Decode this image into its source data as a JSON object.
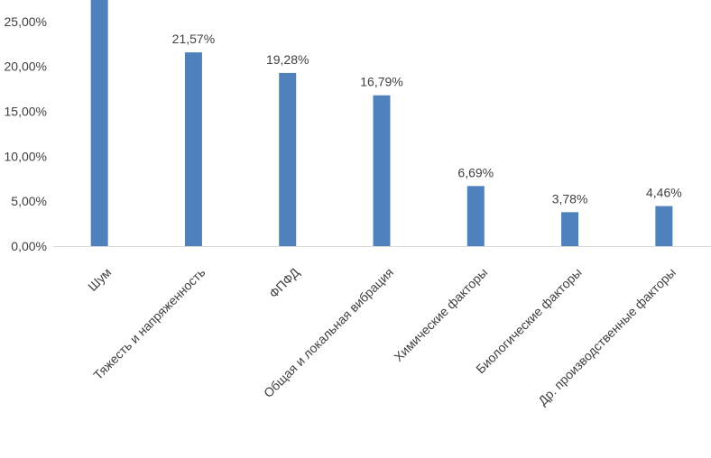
{
  "chart_data": {
    "type": "bar",
    "title": "",
    "xlabel": "",
    "ylabel": "",
    "categories": [
      "Шум",
      "Тяжесть и напряженность",
      "ФПФД",
      "Общая и локальная вибрация",
      "Химические факторы",
      "Биологические факторы",
      "Др. производственные факторы"
    ],
    "values": [
      27.4,
      21.57,
      19.28,
      16.79,
      6.69,
      3.78,
      4.46
    ],
    "data_labels": [
      "",
      "21,57%",
      "19,28%",
      "16,79%",
      "6,69%",
      "3,78%",
      "4,46%"
    ],
    "y_ticks": [
      "0,00%",
      "5,00%",
      "10,00%",
      "15,00%",
      "20,00%",
      "25,00%"
    ],
    "ylim": [
      0,
      27.4
    ],
    "bar_color": "#4f81bd",
    "grid": false,
    "legend": "none"
  }
}
